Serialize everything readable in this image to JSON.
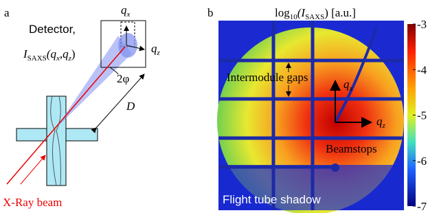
{
  "panel_a": {
    "label": "a",
    "detector": "Detector,",
    "intensity": [
      "I",
      "SAXS",
      "(q",
      "x",
      ",q",
      "z",
      ")"
    ],
    "qx": [
      "q",
      "x"
    ],
    "qz": [
      "q",
      "z"
    ],
    "angle": "2φ",
    "distance": "D",
    "beam": "X-Ray beam"
  },
  "panel_b": {
    "label": "b",
    "colorbar_title": [
      "log",
      "10",
      "(I",
      "SAXS",
      ") [a.u.]"
    ],
    "colorbar": {
      "lim": [
        -7,
        -3
      ],
      "ticks": [
        -3,
        -4,
        -5,
        -6,
        -7
      ]
    },
    "gaps": "Intermodule gaps",
    "qx": [
      "q",
      "x"
    ],
    "qz": [
      "q",
      "z"
    ],
    "beamstops": "Beamstops",
    "shadow": "Flight tube shadow"
  }
}
